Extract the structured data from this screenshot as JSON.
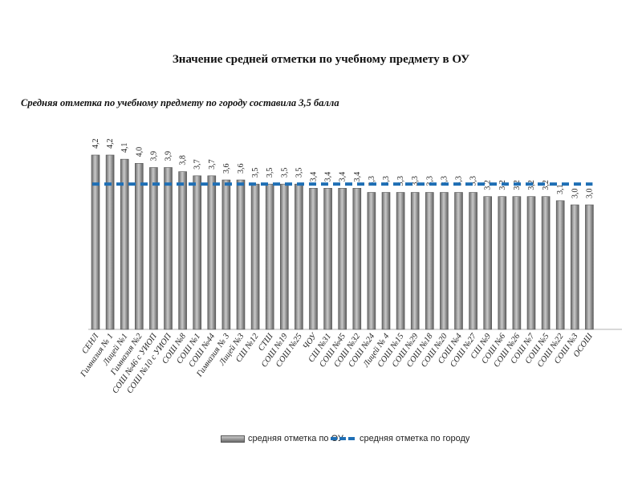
{
  "chart_data": {
    "type": "bar",
    "title": "Значение средней отметки по учебному предмету в ОУ",
    "subtitle": "Средняя отметка по учебному предмету по городу составила 3,5 балла",
    "categories": [
      "СЕНЛ",
      "Гимназия № 1",
      "Лицей №1",
      "Гимназия №2",
      "СОШ №46 с УИОП",
      "СОШ №10 с УИОП",
      "СОШ №8",
      "СОШ №1",
      "СОШ №44",
      "Гимназия № 3",
      "Лицей №3",
      "СШ №12",
      "СТШ",
      "СОШ №19",
      "СОШ №25",
      "ЧОУ",
      "СШ №31",
      "СОШ №45",
      "СОШ №32",
      "СОШ №24",
      "Лицей № 4",
      "СОШ №15",
      "СОШ №29",
      "СОШ №18",
      "СОШ №20",
      "СОШ №4",
      "СОШ №27",
      "СШ №9",
      "СОШ №6",
      "СОШ №26",
      "СОШ №7",
      "СОШ №5",
      "СОШ №22",
      "СОШ №3",
      "ОСОШ"
    ],
    "values": [
      4.2,
      4.2,
      4.1,
      4.0,
      3.9,
      3.9,
      3.8,
      3.7,
      3.7,
      3.6,
      3.6,
      3.5,
      3.5,
      3.5,
      3.5,
      3.4,
      3.4,
      3.4,
      3.4,
      3.3,
      3.3,
      3.3,
      3.3,
      3.3,
      3.3,
      3.3,
      3.3,
      3.2,
      3.2,
      3.2,
      3.2,
      3.2,
      3.1,
      3.0,
      3.0
    ],
    "value_labels": [
      "4,2",
      "4,2",
      "4,1",
      "4,0",
      "3,9",
      "3,9",
      "3,8",
      "3,7",
      "3,7",
      "3,6",
      "3,6",
      "3,5",
      "3,5",
      "3,5",
      "3,5",
      "3,4",
      "3,4",
      "3,4",
      "3,4",
      "3,3",
      "3,3",
      "3,3",
      "3,3",
      "3,3",
      "3,3",
      "3,3",
      "3,3",
      "3,2",
      "3,2",
      "3,2",
      "3,2",
      "3,2",
      "3,1",
      "3,0",
      "3,0"
    ],
    "city_average": 3.5,
    "ylim": [
      0,
      4.2
    ],
    "series": [
      {
        "name": "средняя отметка по ОУ",
        "type": "bar",
        "color": "#8a8a8a"
      },
      {
        "name": "средняя отметка по городу",
        "type": "line",
        "style": "dashed",
        "color": "#1f6fb5"
      }
    ],
    "legend_position": "bottom"
  }
}
